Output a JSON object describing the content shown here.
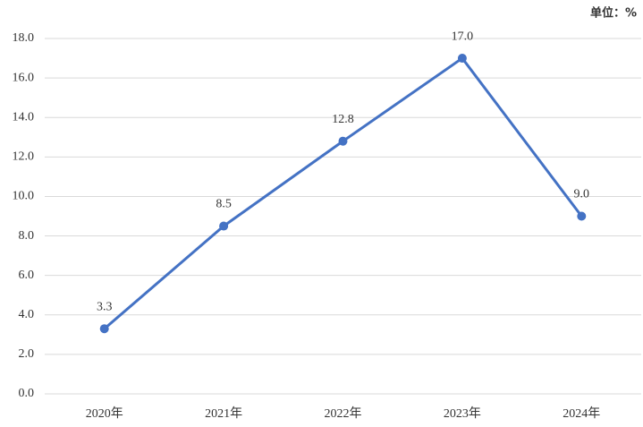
{
  "chart_data": {
    "type": "line",
    "unit_label": "单位：%",
    "categories": [
      "2020年",
      "2021年",
      "2022年",
      "2023年",
      "2024年"
    ],
    "values": [
      3.3,
      8.5,
      12.8,
      17.0,
      9.0
    ],
    "value_labels": [
      "3.3",
      "8.5",
      "12.8",
      "17.0",
      "9.0"
    ],
    "color": "#4472c4",
    "ylim": [
      0,
      18
    ],
    "yticks": [
      {
        "value": 0,
        "label": "0.0"
      },
      {
        "value": 2,
        "label": "2.0"
      },
      {
        "value": 4,
        "label": "4.0"
      },
      {
        "value": 6,
        "label": "6.0"
      },
      {
        "value": 8,
        "label": "8.0"
      },
      {
        "value": 10,
        "label": "10.0"
      },
      {
        "value": 12,
        "label": "12.0"
      },
      {
        "value": 14,
        "label": "14.0"
      },
      {
        "value": 16,
        "label": "16.0"
      },
      {
        "value": 18,
        "label": "18.0"
      }
    ],
    "grid": true
  }
}
